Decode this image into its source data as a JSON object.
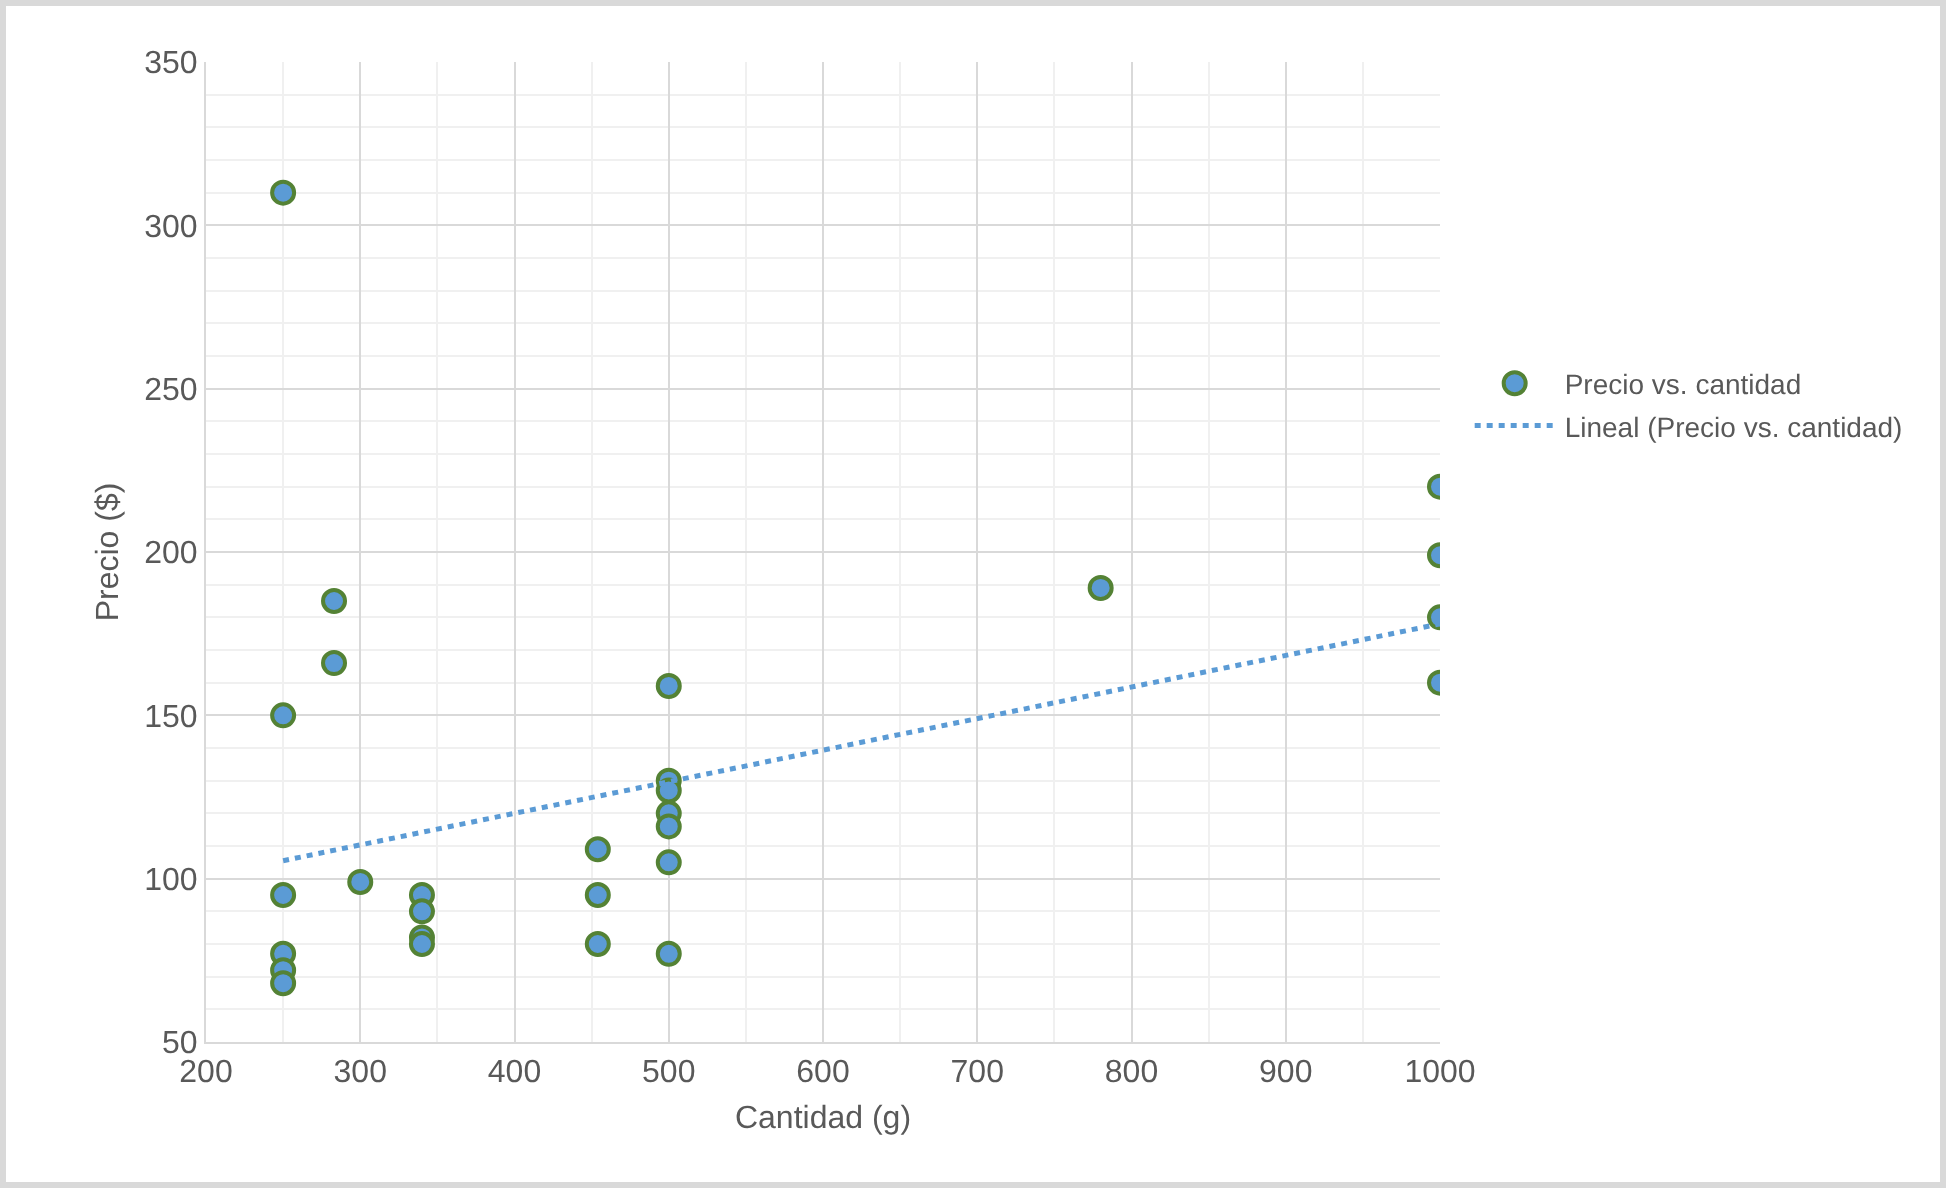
{
  "chart_data": {
    "type": "scatter",
    "xlabel": "Cantidad (g)",
    "ylabel": "Precio ($)",
    "xlim": [
      200,
      1000
    ],
    "ylim": [
      50,
      350
    ],
    "xticks": [
      200,
      300,
      400,
      500,
      600,
      700,
      800,
      900,
      1000
    ],
    "yticks": [
      50,
      100,
      150,
      200,
      250,
      300,
      350
    ],
    "grid": true,
    "legend": "right",
    "marker": "circle",
    "series": [
      {
        "name": "Precio vs. cantidad",
        "color": "#5b9bd5",
        "x": [
          250,
          250,
          250,
          250,
          250,
          250,
          283,
          283,
          300,
          340,
          340,
          340,
          340,
          454,
          454,
          454,
          500,
          500,
          500,
          500,
          500,
          500,
          500,
          780,
          1000,
          1000,
          1000,
          1000
        ],
        "values": [
          310,
          150,
          95,
          77,
          72,
          68,
          185,
          166,
          99,
          95,
          90,
          82,
          80,
          109,
          95,
          80,
          159,
          130,
          127,
          120,
          116,
          105,
          77,
          189,
          220,
          199,
          180,
          160
        ]
      },
      {
        "name": "Lineal (Precio vs. cantidad)",
        "type": "line",
        "color": "#5b9bd5",
        "line_style": "dotted",
        "marker": "none",
        "x": [
          250,
          1000
        ],
        "values": [
          105.5,
          178
        ]
      }
    ]
  }
}
